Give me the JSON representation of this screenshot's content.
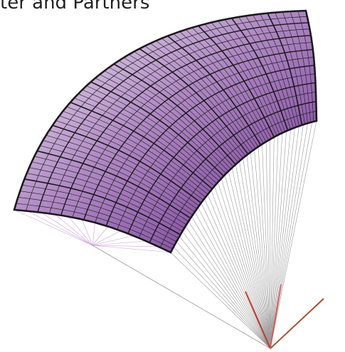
{
  "caption": "ter and Partners"
}
